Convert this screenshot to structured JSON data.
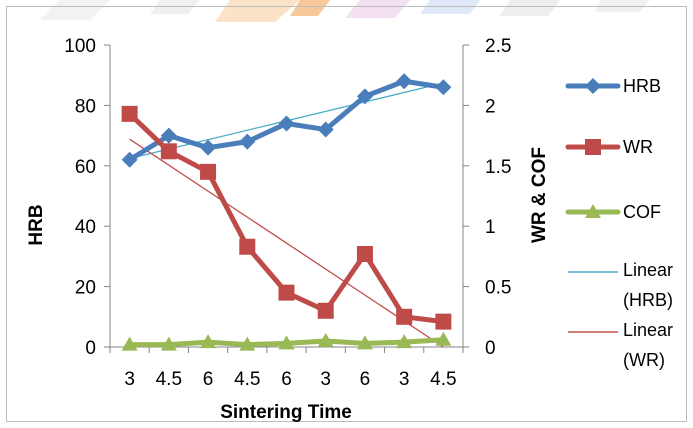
{
  "chart_data": {
    "type": "line",
    "title": "",
    "categories": [
      "3",
      "4.5",
      "6",
      "4.5",
      "6",
      "3",
      "6",
      "3",
      "4.5"
    ],
    "xlabel": "Sintering Time",
    "ylabel_left": "HRB",
    "ylabel_right": "WR & COF",
    "ylim_left": [
      0,
      100
    ],
    "yticks_left": [
      "0",
      "20",
      "40",
      "60",
      "80",
      "100"
    ],
    "ylim_right": [
      0,
      2.5
    ],
    "yticks_right": [
      "0",
      "0.5",
      "1",
      "1.5",
      "2",
      "2.5"
    ],
    "grid": false,
    "legend_position": "right",
    "series": [
      {
        "name": "HRB",
        "axis": "left",
        "marker": "diamond",
        "color": "#4a7ebb",
        "values": [
          62,
          70,
          66,
          68,
          74,
          72,
          83,
          88,
          86
        ]
      },
      {
        "name": "WR",
        "axis": "right",
        "marker": "square",
        "color": "#be4b48",
        "values": [
          1.93,
          1.62,
          1.45,
          0.83,
          0.45,
          0.3,
          0.77,
          0.25,
          0.21
        ]
      },
      {
        "name": "COF",
        "axis": "right",
        "marker": "triangle",
        "color": "#98b954",
        "values": [
          0.02,
          0.02,
          0.04,
          0.02,
          0.03,
          0.05,
          0.03,
          0.04,
          0.06
        ]
      }
    ],
    "trendlines": [
      {
        "name": "Linear (HRB)",
        "label_lines": [
          "Linear",
          "(HRB)"
        ],
        "of": "HRB",
        "axis": "left",
        "color": "#4bacc6",
        "start": 62.4,
        "end": 87.4
      },
      {
        "name": "Linear (WR)",
        "label_lines": [
          "Linear",
          "(WR)"
        ],
        "of": "WR",
        "axis": "right",
        "color": "#c0504d",
        "start": 1.72,
        "end": 0.0
      }
    ]
  }
}
